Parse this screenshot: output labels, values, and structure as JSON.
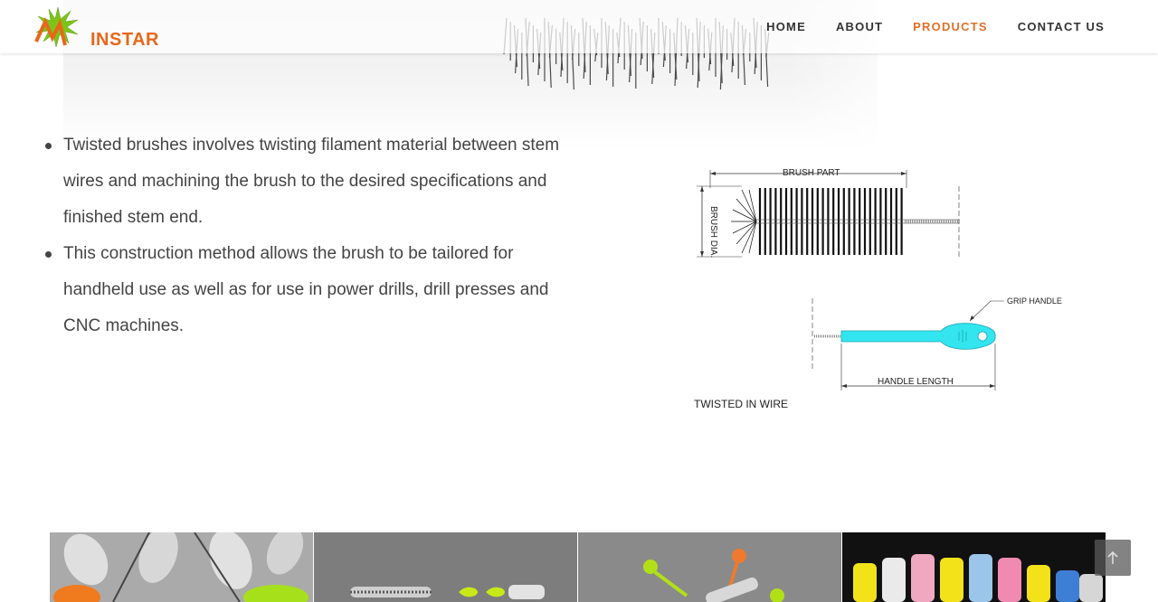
{
  "brand": {
    "logo_text": "INSTAR",
    "accent_color": "#e0702a"
  },
  "nav": {
    "items": [
      {
        "label": "HOME"
      },
      {
        "label": "ABOUT"
      },
      {
        "label": "PRODUCTS"
      },
      {
        "label": "CONTACT US"
      }
    ],
    "active": "PRODUCTS"
  },
  "content": {
    "bullets": [
      "Twisted brushes involves twisting filament material between stem wires and machining the brush to the desired specifications and finished stem end.",
      "This construction method allows the brush to be tailored for handheld use as well as for use in power drills, drill presses and CNC machines."
    ]
  },
  "diagram": {
    "brush_part_label": "BRUSH PART",
    "brush_dia_label": "BRUSH DIA.",
    "grip_handle_label": "GRIP HANDLE",
    "handle_length_label": "HANDLE LENGTH",
    "caption": "TWISTED IN WIRE"
  },
  "gallery": {
    "items": [
      {
        "icon": "gray-bottle-brushes-photo"
      },
      {
        "icon": "green-handle-brushes-photo"
      },
      {
        "icon": "spoon-handle-brushes-photo"
      },
      {
        "icon": "colored-tip-brushes-photo"
      }
    ]
  },
  "scroll_top": {
    "icon": "chevron-up-icon"
  }
}
